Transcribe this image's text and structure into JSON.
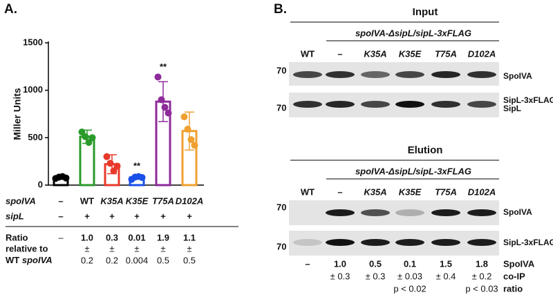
{
  "chart_data": {
    "type": "bar",
    "panel_label": "A.",
    "y_label": "Miller Units",
    "categories": [
      "–",
      "WT",
      "K35A",
      "K35E",
      "T75A",
      "D102A"
    ],
    "values": [
      80,
      510,
      220,
      80,
      880,
      570
    ],
    "errors": [
      15,
      70,
      100,
      15,
      210,
      200
    ],
    "points": [
      [
        70,
        85,
        90,
        75
      ],
      [
        560,
        510,
        450,
        500
      ],
      [
        300,
        230,
        150,
        200
      ],
      [
        60,
        85,
        90,
        80
      ],
      [
        1140,
        900,
        820,
        760
      ],
      [
        720,
        590,
        480,
        420
      ]
    ],
    "colors": [
      "#000000",
      "#2a9a2a",
      "#e8392a",
      "#1a4fe8",
      "#8e2a9a",
      "#f0a030"
    ],
    "ylim": [
      0,
      1500
    ],
    "yticks": [
      0,
      500,
      1000,
      1500
    ],
    "annotations": [
      {
        "text": "**",
        "category": "K35E"
      },
      {
        "text": "**",
        "category": "T75A"
      }
    ]
  },
  "panel_a": {
    "spoIVA_label": "spoIVA",
    "sipL_label": "sipL",
    "sipL": [
      "–",
      "+",
      "+",
      "+",
      "+",
      "+"
    ],
    "ratio_label": [
      "Ratio",
      "relative to"
    ],
    "ratio_none": "–",
    "pm": "±",
    "ratios": [
      {
        "mean": "1.0",
        "sd": "0.2"
      },
      {
        "mean": "0.3",
        "sd": "0.2"
      },
      {
        "mean": "0.01",
        "sd": "0.004"
      },
      {
        "mean": "1.9",
        "sd": "0.5"
      },
      {
        "mean": "1.1",
        "sd": "0.5"
      }
    ]
  },
  "panel_b": {
    "panel_label": "B.",
    "mw": "70",
    "input": {
      "title": "Input",
      "header": "spoIVA-ΔsipL/sipL-3xFLAG",
      "lanes": [
        "WT",
        "–",
        "K35A",
        "K35E",
        "T75A",
        "D102A"
      ],
      "bands": [
        "SpoIVA",
        "SipL-3xFLAG",
        "SipL"
      ]
    },
    "elution": {
      "title": "Elution",
      "header": "spoIVA-ΔsipL/sipL-3xFLAG",
      "lanes": [
        "WT",
        "–",
        "K35A",
        "K35E",
        "T75A",
        "D102A"
      ],
      "bands": [
        "SpoIVA",
        "SipL-3xFLAG"
      ]
    },
    "coip": {
      "none": "–",
      "label": [
        "SpoIVA",
        "co-IP",
        "ratio"
      ],
      "values": [
        {
          "mean": "1.0",
          "sd": "± 0.3"
        },
        {
          "mean": "0.5",
          "sd": "± 0.3"
        },
        {
          "mean": "0.1",
          "sd": "± 0.03",
          "p": "p < 0.02"
        },
        {
          "mean": "1.5",
          "sd": "± 0.4"
        },
        {
          "mean": "1.8",
          "sd": "± 0.2",
          "p": "p < 0.03"
        }
      ]
    }
  }
}
